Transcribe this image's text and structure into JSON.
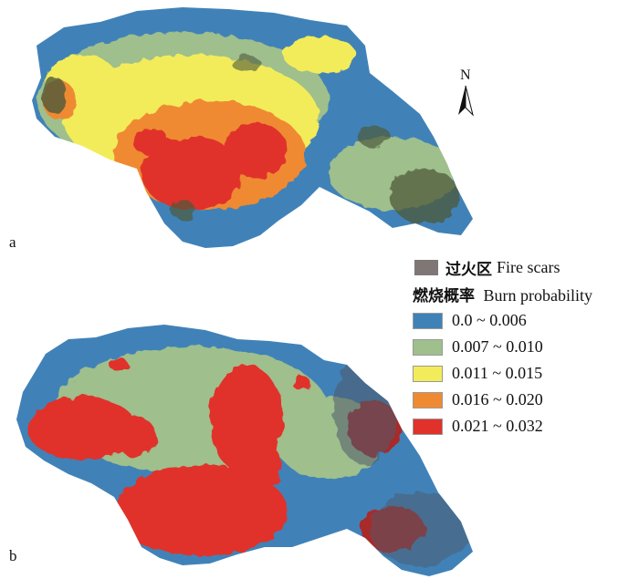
{
  "panels": [
    {
      "label": "a",
      "name": "panel-a-burn-probability-map"
    },
    {
      "label": "b",
      "name": "panel-b-burn-probability-map"
    }
  ],
  "north_arrow": {
    "letter": "N"
  },
  "legend": {
    "fire_scars": {
      "label_cn": "过火区",
      "label_en": "Fire scars",
      "color": "#7f7775"
    },
    "title_cn": "燃烧概率",
    "title_en": "Burn probability",
    "classes": [
      {
        "label": "0.0 ~ 0.006",
        "color": "#3f82b8"
      },
      {
        "label": "0.007 ~ 0.010",
        "color": "#9fbf8c"
      },
      {
        "label": "0.011 ~ 0.015",
        "color": "#f3ec5a"
      },
      {
        "label": "0.016 ~ 0.020",
        "color": "#ef8a33"
      },
      {
        "label": "0.021 ~ 0.032",
        "color": "#e0312b"
      }
    ]
  }
}
